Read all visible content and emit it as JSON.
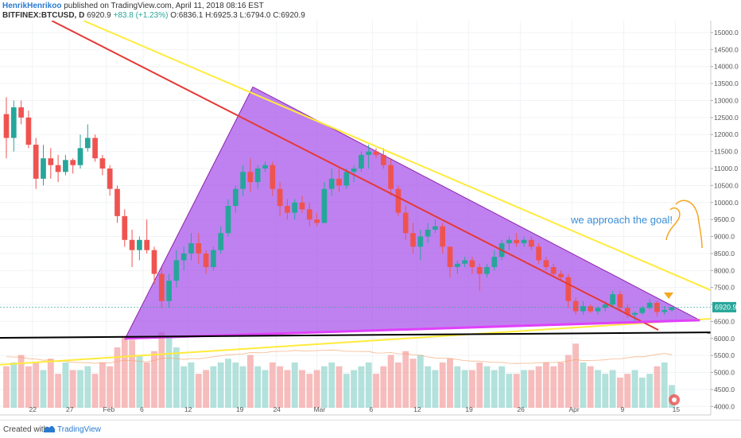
{
  "header": {
    "author": "HenrikHenrikoo",
    "published": "published on TradingView.com, April 11, 2018 08:16 EST",
    "symbol": "BITFINEX:BTCUSD, D",
    "price": "6920.9",
    "change": "+83.8 (+1.23%)",
    "ohlc_o": "O:6836.1",
    "ohlc_h": "H:6925.3",
    "ohlc_l": "L:6794.0",
    "ohlc_c": "C:6920.9"
  },
  "footer": {
    "created": "Created with",
    "brand": "TradingView"
  },
  "colors": {
    "up": "#26a69a",
    "down": "#ef5350",
    "triangle": "#9c27f0",
    "yellow": "#ffeb3b",
    "red_line": "#e53935",
    "support": "#000000",
    "annotation": "#3d8fd6",
    "arrow": "#f5a623"
  },
  "chart_data": {
    "type": "candlestick",
    "title": "",
    "y_ticks": [
      "15000.0",
      "14500.0",
      "14000.0",
      "13500.0",
      "13000.0",
      "12500.0",
      "12000.0",
      "11500.0",
      "11000.0",
      "10500.0",
      "10000.0",
      "9500.0",
      "9000.0",
      "8500.0",
      "8000.0",
      "7500.0",
      "7000.0",
      "6500.0",
      "6000.0",
      "5500.0",
      "5000.0",
      "4500.0",
      "4000.0"
    ],
    "x_ticks": [
      "22",
      "27",
      "Feb",
      "6",
      "12",
      "19",
      "24",
      "Mar",
      "6",
      "12",
      "19",
      "26",
      "Apr",
      "9",
      "15"
    ],
    "ylim": [
      3750,
      15350
    ],
    "last_price_label": "6920.9",
    "annotation": "we approach the goal!",
    "candles": [
      [
        12600,
        13100,
        11300,
        11900
      ],
      [
        11900,
        13000,
        11500,
        12800
      ],
      [
        12800,
        13000,
        12300,
        12500
      ],
      [
        12500,
        12700,
        11600,
        11700
      ],
      [
        11700,
        11900,
        10400,
        10700
      ],
      [
        10700,
        11700,
        10500,
        11300
      ],
      [
        11300,
        11600,
        10700,
        11100
      ],
      [
        11100,
        11400,
        10600,
        10900
      ],
      [
        10900,
        11400,
        10800,
        11250
      ],
      [
        11250,
        11300,
        10850,
        11100
      ],
      [
        11100,
        12000,
        11000,
        11600
      ],
      [
        11600,
        12300,
        11500,
        11900
      ],
      [
        11900,
        12000,
        11200,
        11300
      ],
      [
        11300,
        11400,
        10800,
        11000
      ],
      [
        11000,
        11100,
        10200,
        10400
      ],
      [
        10400,
        10500,
        9400,
        9600
      ],
      [
        9600,
        9800,
        8700,
        8900
      ],
      [
        8900,
        9200,
        8100,
        8600
      ],
      [
        8600,
        9000,
        8300,
        8900
      ],
      [
        8900,
        9500,
        8500,
        8600
      ],
      [
        8600,
        8700,
        7600,
        7900
      ],
      [
        7900,
        8100,
        6900,
        7100
      ],
      [
        7100,
        7900,
        6900,
        7700
      ],
      [
        7700,
        8600,
        7500,
        8300
      ],
      [
        8300,
        8700,
        8000,
        8500
      ],
      [
        8500,
        9100,
        8300,
        8800
      ],
      [
        8800,
        9100,
        8200,
        8500
      ],
      [
        8500,
        8600,
        7900,
        8100
      ],
      [
        8100,
        8700,
        8000,
        8600
      ],
      [
        8600,
        9300,
        8500,
        9100
      ],
      [
        9100,
        10100,
        9000,
        9900
      ],
      [
        9900,
        10500,
        9700,
        10400
      ],
      [
        10400,
        11100,
        10200,
        10900
      ],
      [
        10900,
        11300,
        10300,
        10600
      ],
      [
        10600,
        11100,
        10400,
        11000
      ],
      [
        11000,
        11200,
        10900,
        11100
      ],
      [
        11100,
        11200,
        10200,
        10400
      ],
      [
        10400,
        10600,
        9600,
        9900
      ],
      [
        9900,
        10100,
        9500,
        9700
      ],
      [
        9700,
        10100,
        9500,
        10000
      ],
      [
        10000,
        10200,
        9700,
        9800
      ],
      [
        9800,
        10000,
        9300,
        9500
      ],
      [
        9500,
        9700,
        9300,
        9400
      ],
      [
        9400,
        10600,
        9400,
        10400
      ],
      [
        10400,
        11000,
        10200,
        10700
      ],
      [
        10700,
        11000,
        10300,
        10500
      ],
      [
        10500,
        11000,
        10400,
        10900
      ],
      [
        10900,
        11100,
        10600,
        11000
      ],
      [
        11000,
        11500,
        10900,
        11400
      ],
      [
        11400,
        11700,
        11000,
        11500
      ],
      [
        11500,
        11600,
        11300,
        11400
      ],
      [
        11400,
        11600,
        11000,
        11100
      ],
      [
        11100,
        11300,
        10200,
        10400
      ],
      [
        10400,
        10500,
        9600,
        9700
      ],
      [
        9700,
        9900,
        8900,
        9100
      ],
      [
        9100,
        9400,
        8500,
        8700
      ],
      [
        8700,
        9200,
        8300,
        9000
      ],
      [
        9000,
        9400,
        8800,
        9200
      ],
      [
        9200,
        9500,
        9100,
        9300
      ],
      [
        9300,
        9400,
        8500,
        8700
      ],
      [
        8700,
        8700,
        7800,
        8100
      ],
      [
        8100,
        8300,
        7900,
        8200
      ],
      [
        8200,
        8400,
        8100,
        8300
      ],
      [
        8300,
        8400,
        7900,
        8100
      ],
      [
        8100,
        8200,
        7400,
        7900
      ],
      [
        7900,
        8200,
        7800,
        8100
      ],
      [
        8100,
        8600,
        8000,
        8400
      ],
      [
        8400,
        8900,
        8300,
        8800
      ],
      [
        8800,
        9000,
        8600,
        8900
      ],
      [
        8900,
        9100,
        8700,
        8800
      ],
      [
        8800,
        9000,
        8700,
        8900
      ],
      [
        8900,
        9000,
        8600,
        8700
      ],
      [
        8700,
        8800,
        8200,
        8300
      ],
      [
        8300,
        8400,
        8000,
        8100
      ],
      [
        8100,
        8200,
        7800,
        7900
      ],
      [
        7900,
        8000,
        7700,
        7800
      ],
      [
        7800,
        7900,
        6900,
        7100
      ],
      [
        7100,
        7200,
        6700,
        6800
      ],
      [
        6800,
        7100,
        6700,
        6950
      ],
      [
        6950,
        7000,
        6750,
        6800
      ],
      [
        6800,
        6950,
        6700,
        6900
      ],
      [
        6900,
        7100,
        6800,
        7000
      ],
      [
        7000,
        7400,
        6950,
        7300
      ],
      [
        7300,
        7400,
        6800,
        6900
      ],
      [
        6900,
        7000,
        6600,
        6700
      ],
      [
        6700,
        6800,
        6500,
        6750
      ],
      [
        6750,
        6950,
        6700,
        6900
      ],
      [
        6900,
        7150,
        6850,
        7050
      ],
      [
        7050,
        7100,
        6650,
        6780
      ],
      [
        6780,
        6950,
        6700,
        6840
      ],
      [
        6836,
        6925,
        6794,
        6921
      ]
    ],
    "volume_ticks_note": "volume histogram shown in lower pane (relative)",
    "volume": [
      0.55,
      0.6,
      0.7,
      0.55,
      0.6,
      0.5,
      0.65,
      0.45,
      0.6,
      0.5,
      0.5,
      0.55,
      0.45,
      0.6,
      0.55,
      0.8,
      0.95,
      0.9,
      0.7,
      0.6,
      0.75,
      1.0,
      0.95,
      0.8,
      0.55,
      0.6,
      0.45,
      0.5,
      0.55,
      0.6,
      0.65,
      0.6,
      0.55,
      0.7,
      0.55,
      0.5,
      0.6,
      0.55,
      0.5,
      0.6,
      0.5,
      0.45,
      0.5,
      0.55,
      0.6,
      0.55,
      0.45,
      0.5,
      0.55,
      0.6,
      0.45,
      0.55,
      0.7,
      0.6,
      0.75,
      0.65,
      0.7,
      0.55,
      0.5,
      0.6,
      0.65,
      0.55,
      0.5,
      0.5,
      0.6,
      0.55,
      0.5,
      0.55,
      0.45,
      0.45,
      0.5,
      0.5,
      0.55,
      0.6,
      0.55,
      0.6,
      0.7,
      0.85,
      0.6,
      0.55,
      0.5,
      0.45,
      0.5,
      0.4,
      0.45,
      0.5,
      0.4,
      0.45,
      0.55,
      0.6,
      0.3
    ]
  }
}
